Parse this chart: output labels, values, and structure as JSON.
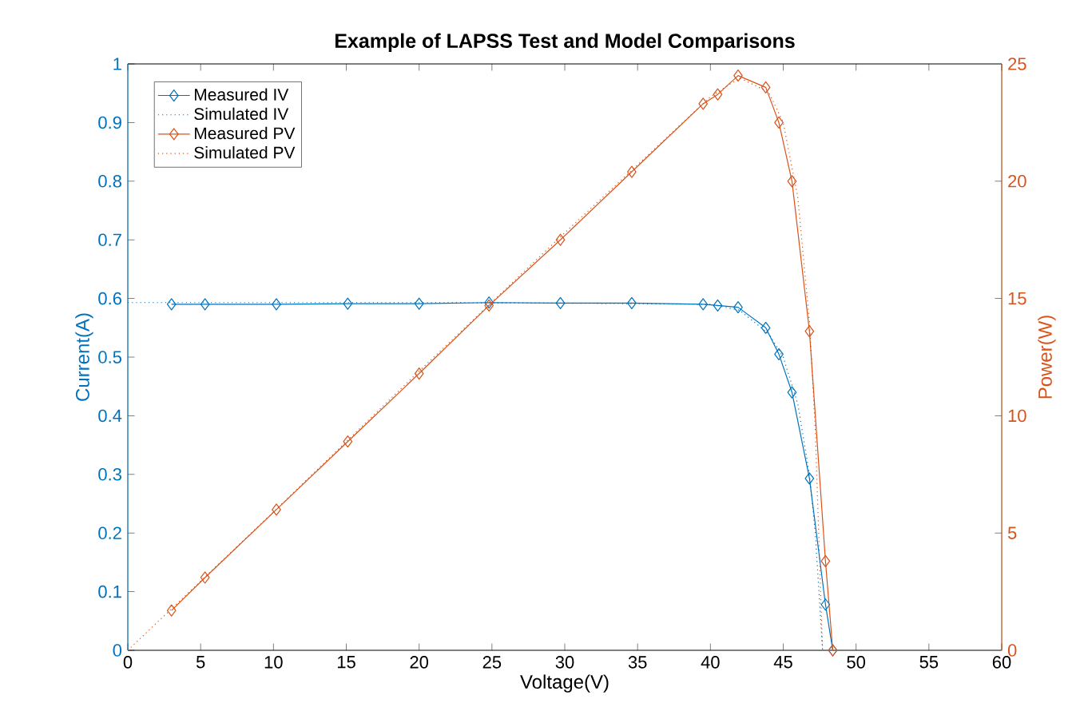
{
  "chart_data": {
    "type": "line",
    "title": "Example of LAPSS Test and Model Comparisons",
    "xlabel": "Voltage(V)",
    "ylabel": "Current(A)",
    "y2label": "Power(W)",
    "xlim": [
      0,
      60
    ],
    "xticks": [
      0,
      5,
      10,
      15,
      20,
      25,
      30,
      35,
      40,
      45,
      50,
      55,
      60
    ],
    "ylim": [
      0,
      1
    ],
    "yticks": [
      0,
      0.1,
      0.2,
      0.3,
      0.4,
      0.5,
      0.6,
      0.7,
      0.8,
      0.9,
      1
    ],
    "y2lim": [
      0,
      25
    ],
    "y2ticks": [
      0,
      5,
      10,
      15,
      20,
      25
    ],
    "legend": "top left",
    "grid": false,
    "series": [
      {
        "name": "Measured IV",
        "color": "#0072bd",
        "marker": "diamond",
        "line_style": "solid",
        "x": [
          3.0,
          5.3,
          10.2,
          15.1,
          20.0,
          24.8,
          29.7,
          34.6,
          39.5,
          40.5,
          41.9,
          43.8,
          44.7,
          45.6,
          46.8,
          47.9,
          48.4
        ],
        "values": [
          0.59,
          0.59,
          0.59,
          0.591,
          0.591,
          0.593,
          0.592,
          0.592,
          0.59,
          0.588,
          0.585,
          0.55,
          0.505,
          0.44,
          0.293,
          0.078,
          0.0
        ]
      },
      {
        "name": "Simulated IV",
        "color": "#0072bd",
        "marker": "none",
        "line_style": "dotted",
        "x": [
          0,
          10,
          20,
          30,
          40,
          42,
          44,
          45,
          46,
          46.8,
          47.2,
          47.7
        ],
        "values": [
          0.593,
          0.593,
          0.593,
          0.592,
          0.59,
          0.58,
          0.54,
          0.5,
          0.42,
          0.3,
          0.2,
          0.0
        ]
      },
      {
        "name": "Measured PV",
        "color": "#d95319",
        "marker": "diamond",
        "line_style": "solid",
        "axis": "y2",
        "x": [
          3.0,
          5.3,
          10.2,
          15.1,
          20.0,
          24.8,
          29.7,
          34.6,
          39.5,
          40.5,
          41.9,
          43.8,
          44.7,
          45.6,
          46.8,
          47.9,
          48.4
        ],
        "values": [
          1.7,
          3.1,
          6.0,
          8.9,
          11.8,
          14.7,
          17.5,
          20.4,
          23.3,
          23.7,
          24.5,
          24.0,
          22.5,
          20.0,
          13.6,
          3.8,
          0.0
        ]
      },
      {
        "name": "Simulated PV",
        "color": "#d95319",
        "marker": "none",
        "line_style": "dotted",
        "axis": "y2",
        "x": [
          0,
          10,
          20,
          30,
          40,
          42,
          44,
          45,
          46,
          46.8,
          47.2,
          47.7
        ],
        "values": [
          0,
          5.9,
          11.9,
          17.8,
          23.6,
          24.4,
          23.8,
          22.5,
          19.3,
          14.0,
          9.4,
          0.0
        ]
      }
    ]
  }
}
